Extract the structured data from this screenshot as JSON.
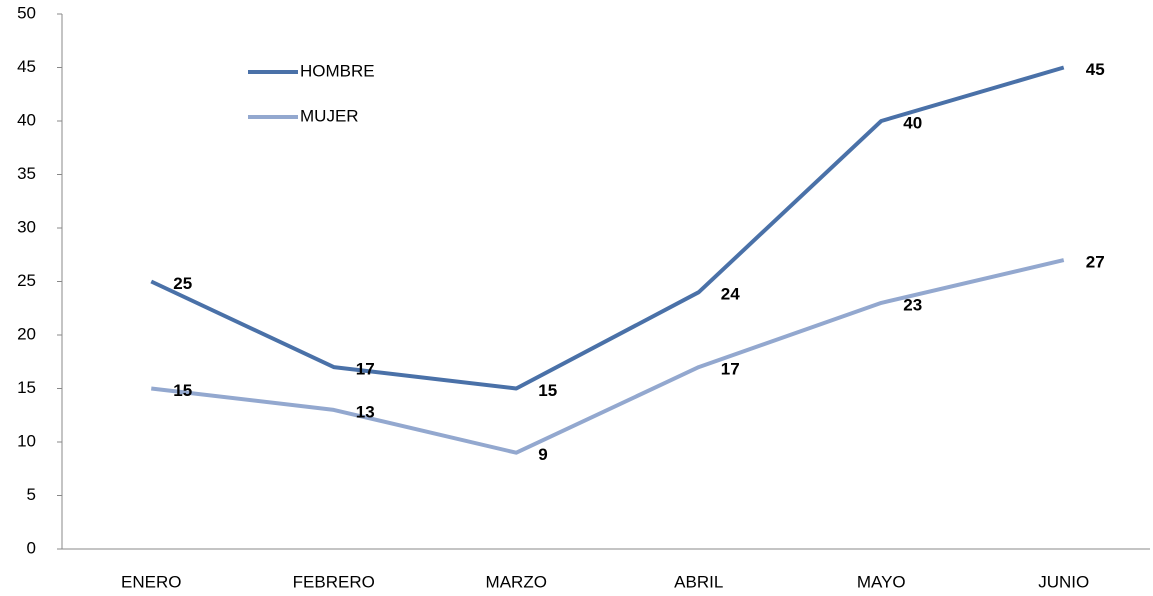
{
  "chart_data": {
    "type": "line",
    "categories": [
      "ENERO",
      "FEBRERO",
      "MARZO",
      "ABRIL",
      "MAYO",
      "JUNIO"
    ],
    "series": [
      {
        "name": "HOMBRE",
        "color": "#4a71a8",
        "values": [
          25,
          17,
          15,
          24,
          40,
          45
        ]
      },
      {
        "name": "MUJER",
        "color": "#93a8cf",
        "values": [
          15,
          13,
          9,
          17,
          23,
          27
        ]
      }
    ],
    "ylim": [
      0,
      50
    ],
    "yticks": [
      0,
      5,
      10,
      15,
      20,
      25,
      30,
      35,
      40,
      45,
      50
    ],
    "legend": "top-left",
    "grid": false
  }
}
